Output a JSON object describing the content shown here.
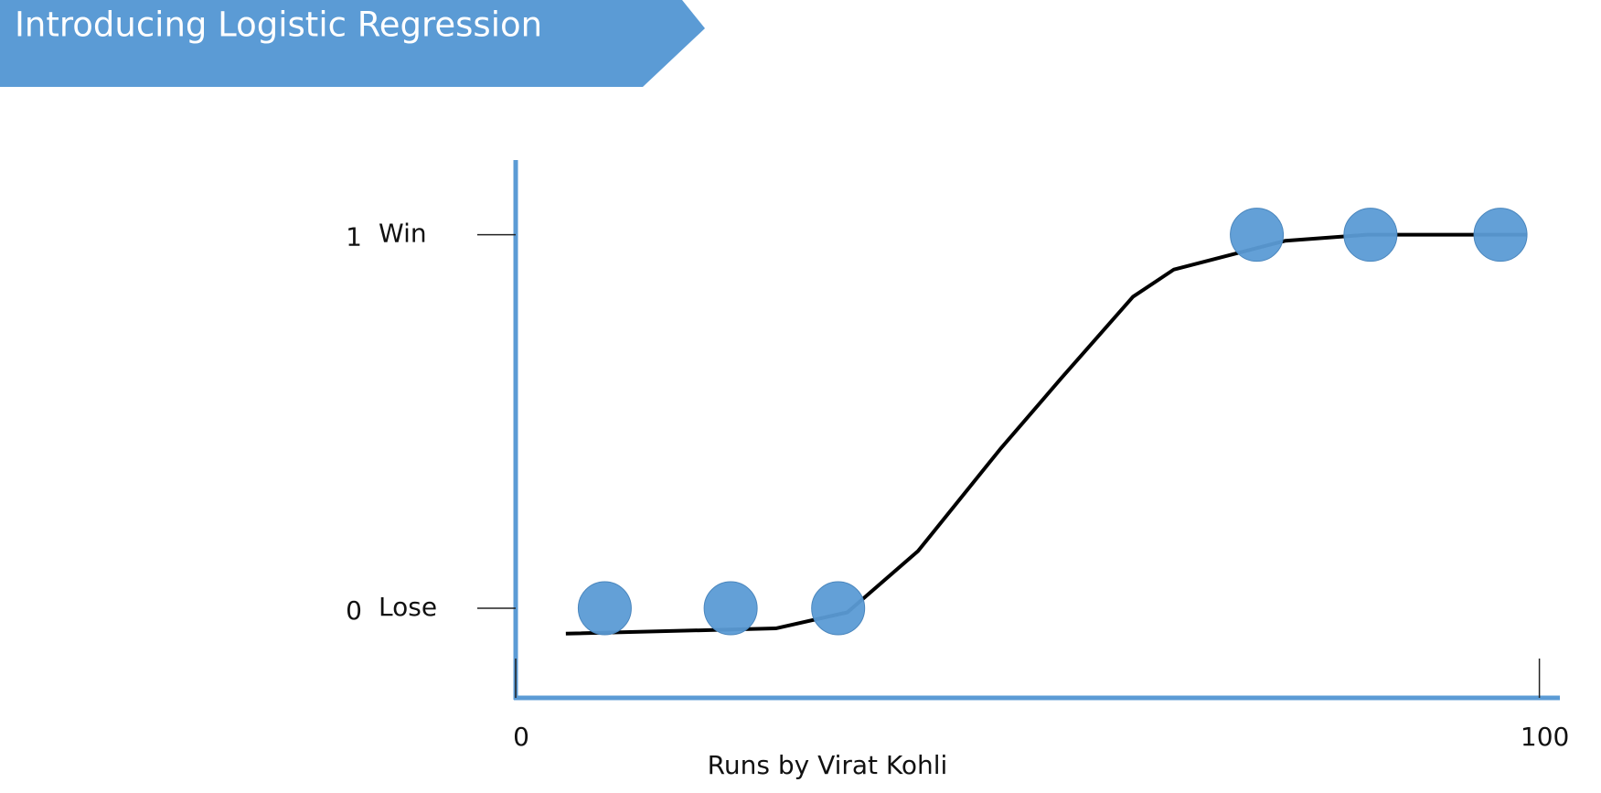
{
  "chart_data": {
    "type": "scatter",
    "title": "Introducing Logistic Regression",
    "xlabel": "Runs by Virat Kohli",
    "x": [
      8.7,
      21,
      31.5,
      72.4,
      83.5,
      96.2
    ],
    "values": [
      0,
      0,
      0,
      1,
      1,
      1
    ],
    "color": "#5b9bd5",
    "curve": {
      "x": [
        4.9,
        25.4,
        32.4,
        39.3,
        47.3,
        53.3,
        60.3,
        64.3,
        75.2,
        83.2,
        98.8
      ],
      "values": [
        -0.068,
        -0.054,
        -0.011,
        0.153,
        0.425,
        0.616,
        0.834,
        0.907,
        0.984,
        1.0,
        1.0
      ],
      "color": "#000000"
    },
    "xlim": [
      0,
      102
    ],
    "ylim": [
      -0.24,
      1.2
    ],
    "xticks": [
      0,
      100
    ],
    "yticks": [
      0,
      1
    ],
    "ytick_names": [
      "Lose",
      "Win"
    ]
  }
}
